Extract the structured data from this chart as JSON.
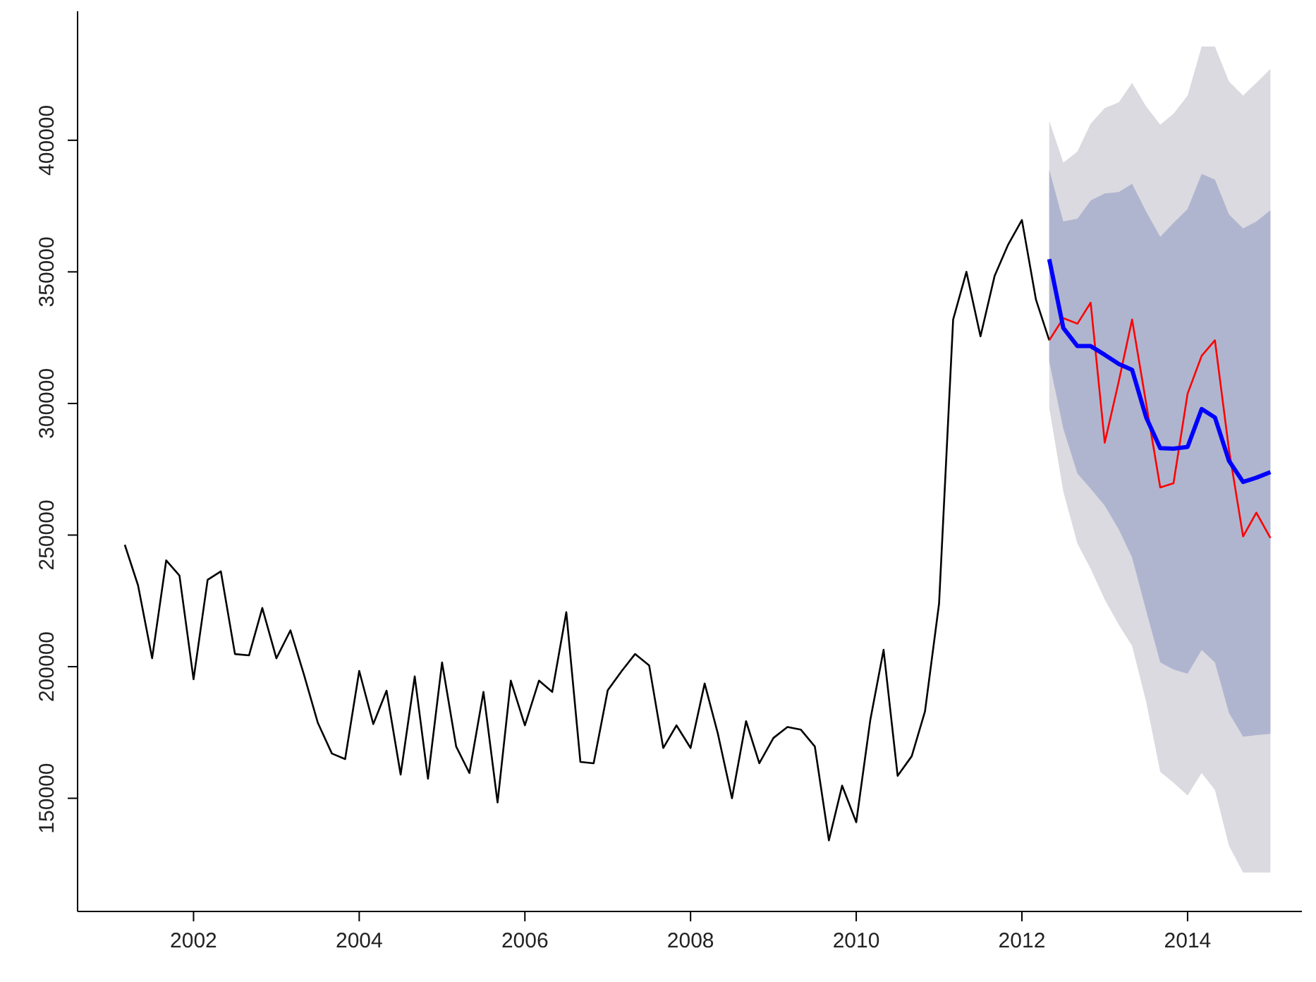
{
  "chart_data": {
    "type": "line",
    "xlim": [
      2000.6,
      2015.38
    ],
    "xticks": [
      2002,
      2004,
      2006,
      2008,
      2010,
      2012,
      2014
    ],
    "ylim": [
      107000,
      449000
    ],
    "yticks": [
      150000,
      200000,
      250000,
      300000,
      350000,
      400000
    ],
    "grid": false,
    "marker": "none",
    "line_style": "solid",
    "series": [
      {
        "type": "area",
        "color": "#dadae0",
        "x": [
          2012.33,
          2012.5,
          2012.67,
          2012.83,
          2013,
          2013.17,
          2013.33,
          2013.5,
          2013.67,
          2013.83,
          2014,
          2014.17,
          2014.33,
          2014.5,
          2014.67,
          2014.83,
          2015
        ],
        "values": [
          null,
          null,
          null,
          null,
          null,
          null,
          null,
          null,
          null,
          null,
          null,
          null,
          null,
          null,
          null,
          null,
          null
        ],
        "lower": [
          298400,
          266500,
          246800,
          237200,
          225500,
          215900,
          207900,
          186700,
          160100,
          155900,
          151100,
          159600,
          153200,
          131900,
          121800,
          121800,
          121800
        ],
        "upper": [
          407400,
          391500,
          395700,
          406300,
          412200,
          414400,
          421800,
          412800,
          405900,
          410100,
          417000,
          435600,
          435600,
          422300,
          417000,
          421800,
          427100
        ]
      },
      {
        "type": "area",
        "color": "#b0b5cf",
        "x": [
          2012.33,
          2012.5,
          2012.67,
          2012.83,
          2013,
          2013.17,
          2013.33,
          2013.5,
          2013.67,
          2013.83,
          2014,
          2014.17,
          2014.33,
          2014.5,
          2014.67,
          2014.83,
          2015
        ],
        "values": [
          null,
          null,
          null,
          null,
          null,
          null,
          null,
          null,
          null,
          null,
          null,
          null,
          null,
          null,
          null,
          null,
          null
        ],
        "lower": [
          316000,
          290400,
          273400,
          267600,
          261200,
          252100,
          241500,
          221300,
          201600,
          198900,
          197300,
          206400,
          201600,
          182400,
          173400,
          174000,
          174500
        ],
        "upper": [
          388800,
          369100,
          370200,
          377100,
          379800,
          380300,
          383500,
          372900,
          363300,
          368600,
          373900,
          387200,
          385100,
          371800,
          366500,
          369100,
          373400
        ]
      },
      {
        "color": "#000000",
        "x": [
          2001.17,
          2001.33,
          2001.5,
          2001.67,
          2001.83,
          2002,
          2002.17,
          2002.33,
          2002.5,
          2002.67,
          2002.83,
          2003,
          2003.17,
          2003.33,
          2003.5,
          2003.67,
          2003.83,
          2004,
          2004.17,
          2004.33,
          2004.5,
          2004.67,
          2004.83,
          2005,
          2005.17,
          2005.33,
          2005.5,
          2005.67,
          2005.83,
          2006,
          2006.17,
          2006.33,
          2006.5,
          2006.67,
          2006.83,
          2007,
          2007.17,
          2007.33,
          2007.5,
          2007.67,
          2007.83,
          2008,
          2008.17,
          2008.33,
          2008.5,
          2008.67,
          2008.83,
          2009,
          2009.17,
          2009.33,
          2009.5,
          2009.67,
          2009.83,
          2010,
          2010.17,
          2010.33,
          2010.5,
          2010.67,
          2010.83,
          2011,
          2011.17,
          2011.33,
          2011.5,
          2011.67,
          2011.83,
          2012,
          2012.17,
          2012.33
        ],
        "values": [
          246300,
          230900,
          203200,
          240400,
          234600,
          195200,
          233000,
          236200,
          204800,
          204300,
          222300,
          203200,
          213800,
          197300,
          178700,
          167000,
          164900,
          198400,
          178200,
          190900,
          159000,
          196300,
          157400,
          201600,
          169700,
          159600,
          190400,
          148400,
          194700,
          177700,
          194700,
          190400,
          220700,
          163800,
          163300,
          191000,
          198400,
          204800,
          200500,
          169100,
          177700,
          169100,
          193600,
          174500,
          150000,
          179300,
          163300,
          172900,
          177100,
          176100,
          169700,
          134000,
          154800,
          140900,
          179800,
          206400,
          158500,
          166000,
          183000,
          224000,
          331900,
          350000,
          325500,
          348400,
          360100,
          369700,
          339400,
          324000
        ]
      },
      {
        "color": "#ff0000",
        "x": [
          2012.33,
          2012.5,
          2012.67,
          2012.83,
          2013,
          2013.17,
          2013.33,
          2013.5,
          2013.67,
          2013.83,
          2014,
          2014.17,
          2014.33,
          2014.5,
          2014.67,
          2014.83,
          2015
        ],
        "values": [
          324000,
          332400,
          330300,
          338300,
          285100,
          308500,
          331900,
          300000,
          268100,
          269700,
          303700,
          318100,
          324000,
          282400,
          249500,
          258500,
          248900
        ]
      },
      {
        "color": "#0000ff",
        "x": [
          2012.33,
          2012.5,
          2012.67,
          2012.83,
          2013,
          2013.17,
          2013.33,
          2013.5,
          2013.67,
          2013.83,
          2014,
          2014.17,
          2014.33,
          2014.5,
          2014.67,
          2014.83,
          2015
        ],
        "values": [
          354800,
          328700,
          321800,
          321800,
          318500,
          315000,
          312800,
          294700,
          283000,
          282800,
          283500,
          297900,
          294700,
          278200,
          270200,
          271800,
          273900
        ]
      }
    ]
  }
}
